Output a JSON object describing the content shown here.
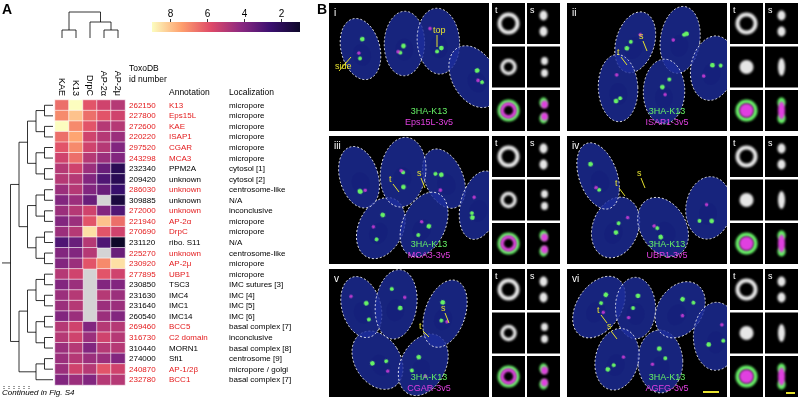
{
  "chart_data": {
    "type": "heatmap",
    "panel_label": "A",
    "columns": [
      "KAE",
      "K13",
      "DrpC",
      "AP-2α",
      "AP-2μ"
    ],
    "header": {
      "id": [
        "ToxoDB",
        "id number"
      ],
      "annotation": "Annotation",
      "localization": "Localization"
    },
    "color_range": [
      1,
      9
    ],
    "color_ticks": [
      8,
      6,
      4,
      2
    ],
    "rows": [
      {
        "id": "262150",
        "annotation": "K13",
        "localization": "micropore",
        "color": "#e31a1c",
        "values": [
          6.5,
          9,
          6,
          5.5,
          5
        ]
      },
      {
        "id": "227800",
        "annotation": "Eps15L",
        "localization": "micropore",
        "color": "#e31a1c",
        "values": [
          7,
          8,
          6.5,
          6,
          5.5
        ]
      },
      {
        "id": "272600",
        "annotation": "KAE",
        "localization": "micropore",
        "color": "#e31a1c",
        "values": [
          9,
          7,
          6,
          5,
          5
        ]
      },
      {
        "id": "220220",
        "annotation": "ISAP1",
        "localization": "micropore",
        "color": "#e31a1c",
        "values": [
          6.5,
          7.5,
          5.5,
          5,
          4.5
        ]
      },
      {
        "id": "297520",
        "annotation": "CGAR",
        "localization": "micropore",
        "color": "#e31a1c",
        "values": [
          6,
          7,
          5.5,
          5,
          4
        ]
      },
      {
        "id": "243298",
        "annotation": "MCA3",
        "localization": "micropore",
        "color": "#e31a1c",
        "values": [
          5.5,
          6.5,
          5,
          4.5,
          4
        ]
      },
      {
        "id": "232340",
        "annotation": "PPM2A",
        "localization": "cytosol [1]",
        "color": "#000000",
        "values": [
          5,
          5.5,
          4.5,
          3.5,
          2
        ]
      },
      {
        "id": "209420",
        "annotation": "unknown",
        "localization": "cytosol [2]",
        "color": "#000000",
        "values": [
          5,
          5,
          4,
          3,
          2
        ]
      },
      {
        "id": "286030",
        "annotation": "unknown",
        "localization": "centrosome-like",
        "color": "#e31a1c",
        "values": [
          4.5,
          5,
          4,
          3.5,
          2.5
        ]
      },
      {
        "id": "309885",
        "annotation": "unknown",
        "localization": "N/A",
        "color": "#000000",
        "values": [
          4,
          4.5,
          3.5,
          null,
          1.5
        ]
      },
      {
        "id": "272000",
        "annotation": "unknown",
        "localization": "inconclusive",
        "color": "#e31a1c",
        "values": [
          4.5,
          5,
          5.5,
          4,
          3
        ]
      },
      {
        "id": "221940",
        "annotation": "AP-2α",
        "localization": "micropore",
        "color": "#e31a1c",
        "values": [
          4,
          4.5,
          6,
          8,
          6.5
        ]
      },
      {
        "id": "270690",
        "annotation": "DrpC",
        "localization": "micropore",
        "color": "#e31a1c",
        "values": [
          4.5,
          5,
          8.5,
          6,
          5.5
        ]
      },
      {
        "id": "231120",
        "annotation": "ribo. S11",
        "localization": "N/A",
        "color": "#000000",
        "values": [
          3,
          3.5,
          5,
          3,
          1
        ]
      },
      {
        "id": "225270",
        "annotation": "unknown",
        "localization": "centrosome-like",
        "color": "#e31a1c",
        "values": [
          4,
          4,
          5,
          null,
          3.5
        ]
      },
      {
        "id": "230920",
        "annotation": "AP-2μ",
        "localization": "micropore",
        "color": "#e31a1c",
        "values": [
          4,
          4.5,
          6,
          7,
          8.5
        ]
      },
      {
        "id": "277895",
        "annotation": "UBP1",
        "localization": "micropore",
        "color": "#e31a1c",
        "values": [
          5,
          5.5,
          null,
          6,
          5.5
        ]
      },
      {
        "id": "230850",
        "annotation": "TSC3",
        "localization": "IMC sutures [3]",
        "color": "#000000",
        "values": [
          4,
          4.5,
          null,
          4,
          4
        ]
      },
      {
        "id": "231630",
        "annotation": "IMC4",
        "localization": "IMC [4]",
        "color": "#000000",
        "values": [
          4.5,
          5,
          null,
          5,
          4.5
        ]
      },
      {
        "id": "231640",
        "annotation": "IMC1",
        "localization": "IMC [5]",
        "color": "#000000",
        "values": [
          4.5,
          5,
          null,
          4.5,
          4.5
        ]
      },
      {
        "id": "260540",
        "annotation": "IMC14",
        "localization": "IMC [6]",
        "color": "#000000",
        "values": [
          4,
          4.5,
          null,
          4.5,
          4
        ]
      },
      {
        "id": "269460",
        "annotation": "BCC5",
        "localization": "basal complex [7]",
        "color": "#e31a1c",
        "values": [
          5,
          5.5,
          4,
          5,
          5
        ]
      },
      {
        "id": "316730",
        "annotation": "C2 domain",
        "localization": "inconclusive",
        "color": "#e31a1c",
        "values": [
          5,
          5.5,
          4.5,
          5.5,
          5
        ]
      },
      {
        "id": "310440",
        "annotation": "MORN1",
        "localization": "basal complex [8]",
        "color": "#000000",
        "values": [
          4.5,
          5,
          4,
          5,
          5
        ]
      },
      {
        "id": "274000",
        "annotation": "Sfi1",
        "localization": "centrosome [9]",
        "color": "#000000",
        "values": [
          4.5,
          5,
          4.5,
          4.5,
          4
        ]
      },
      {
        "id": "240870",
        "annotation": "AP-1/2β",
        "localization": "micropore / golgi",
        "color": "#e31a1c",
        "values": [
          4.5,
          5.5,
          5,
          6,
          5.5
        ]
      },
      {
        "id": "232780",
        "annotation": "BCC1",
        "localization": "basal complex [7]",
        "color": "#e31a1c",
        "values": [
          4,
          4.5,
          4,
          5,
          5
        ]
      }
    ],
    "footnote": "Continued in Fig. S4"
  },
  "panel_b": {
    "panel_label": "B",
    "inset_columns": [
      "t",
      "s"
    ],
    "panels": [
      {
        "numeral": "i",
        "green": "3HA-K13",
        "magenta": "Eps15L-3v5",
        "pointers": [
          "side",
          "top"
        ]
      },
      {
        "numeral": "ii",
        "green": "3HA-K13",
        "magenta": "ISAP1-3v5",
        "pointers": [
          "s",
          "t"
        ]
      },
      {
        "numeral": "iii",
        "green": "3HA-K13",
        "magenta": "MCA3-3v5",
        "pointers": [
          "s",
          "t"
        ]
      },
      {
        "numeral": "iv",
        "green": "3HA-K13",
        "magenta": "UBP1-3v5",
        "pointers": [
          "s",
          "t"
        ]
      },
      {
        "numeral": "v",
        "green": "3HA-K13",
        "magenta": "CGAR-3v5",
        "pointers": [
          "s",
          "t"
        ]
      },
      {
        "numeral": "vi",
        "green": "3HA-K13",
        "magenta": "AGFG-3v5",
        "pointers": [
          "s",
          "t"
        ]
      }
    ]
  }
}
